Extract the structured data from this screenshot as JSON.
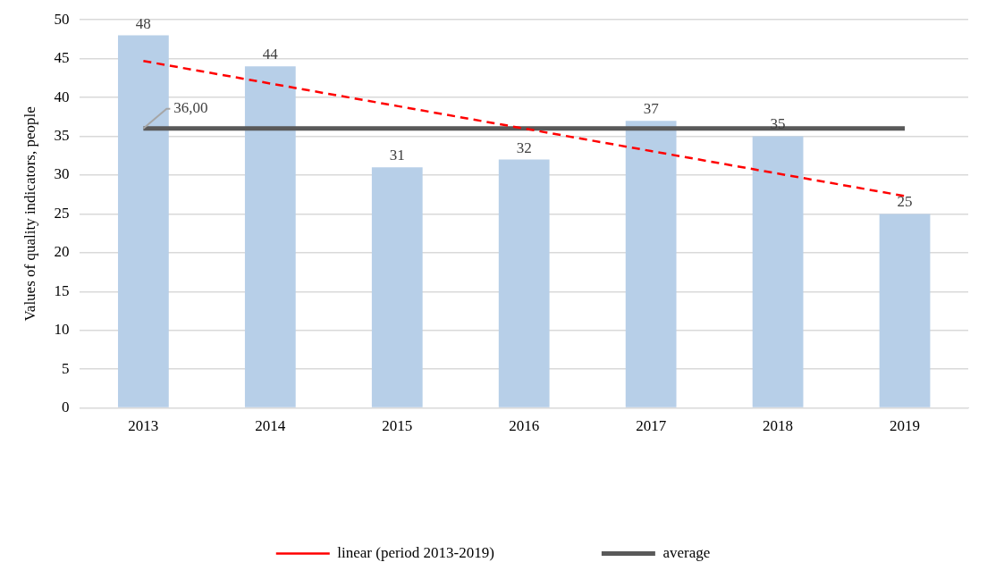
{
  "chart_data": {
    "type": "bar",
    "y_label": "Values of quality indicators, people",
    "categories": [
      "2013",
      "2014",
      "2015",
      "2016",
      "2017",
      "2018",
      "2019"
    ],
    "series": [
      {
        "type": "bar",
        "color": "#b7cfe8",
        "data_labels": true,
        "values": [
          48,
          44,
          31,
          32,
          37,
          35,
          25
        ]
      },
      {
        "name": "average",
        "type": "line",
        "color": "#595959",
        "line_style": "solid",
        "values": [
          36,
          36,
          36,
          36,
          36,
          36,
          36
        ]
      },
      {
        "name": "linear (period 2013-2019)",
        "type": "line",
        "color": "#ff0000",
        "line_style": "dashed",
        "values": [
          44.7,
          41.8,
          38.9,
          36.0,
          33.1,
          30.2,
          27.3
        ]
      }
    ],
    "annotations": [
      {
        "text": "36,00",
        "x": "2013",
        "y": 36
      }
    ],
    "ylim": [
      0,
      50
    ],
    "yticks": [
      0,
      5,
      10,
      15,
      20,
      25,
      30,
      35,
      40,
      45,
      50
    ],
    "grid": true,
    "legend": "bottom"
  }
}
